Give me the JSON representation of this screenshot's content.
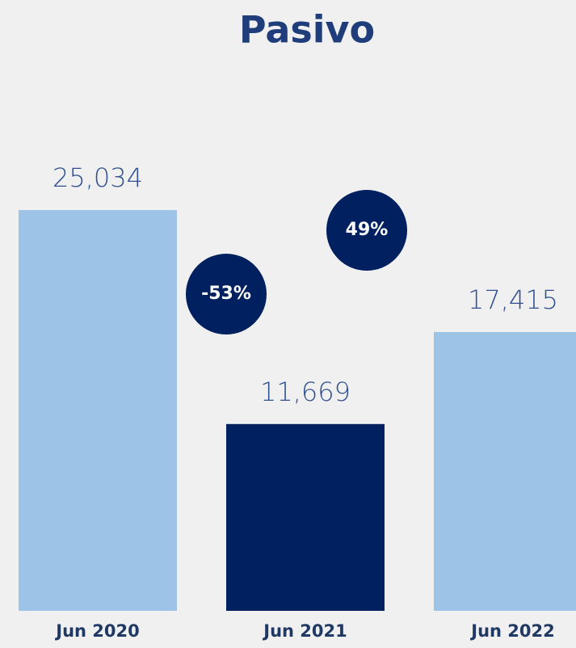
{
  "chart_data": {
    "type": "bar",
    "title": "Pasivo",
    "categories": [
      "Jun 2020",
      "Jun 2021",
      "Jun 2022"
    ],
    "values": [
      25034,
      11669,
      17415
    ],
    "value_labels": [
      "25,034",
      "11,669",
      "17,415"
    ],
    "colors": [
      "#9dc3e6",
      "#002060",
      "#9dc3e6"
    ],
    "annotations": [
      "-53%",
      "49%"
    ],
    "annotation_color": "#002060"
  }
}
